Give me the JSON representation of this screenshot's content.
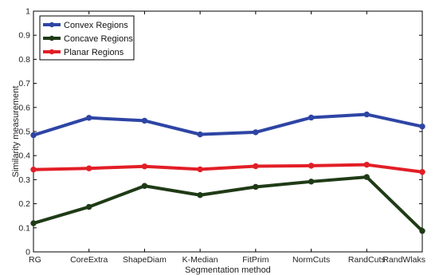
{
  "chart_data": {
    "type": "line",
    "title": "",
    "xlabel": "Segmentation method",
    "ylabel": "Similarity measurement",
    "categories": [
      "RG",
      "CoreExtra",
      "ShapeDiam",
      "K-Median",
      "FitPrim",
      "NormCuts",
      "RandCuts",
      "RandWlaks"
    ],
    "ylim": [
      0,
      1
    ],
    "yticks": [
      0,
      0.1,
      0.2,
      0.3,
      0.4,
      0.5,
      0.6,
      0.7,
      0.8,
      0.9,
      1
    ],
    "ytick_labels": [
      "0",
      "0.1",
      "0.2",
      "0.3",
      "0.4",
      "0.5",
      "0.6",
      "0.7",
      "0.8",
      "0.9",
      "1"
    ],
    "grid": false,
    "legend": "top-left",
    "series": [
      {
        "name": "Convex Regions",
        "color": "#2e45a5",
        "values": [
          0.485,
          0.557,
          0.545,
          0.488,
          0.497,
          0.558,
          0.571,
          0.521
        ]
      },
      {
        "name": "Concave Regions",
        "color": "#1f3b16",
        "values": [
          0.119,
          0.187,
          0.274,
          0.236,
          0.27,
          0.292,
          0.311,
          0.087
        ]
      },
      {
        "name": "Planar Regions",
        "color": "#e21e26",
        "values": [
          0.342,
          0.347,
          0.355,
          0.343,
          0.356,
          0.358,
          0.362,
          0.332
        ]
      }
    ]
  }
}
